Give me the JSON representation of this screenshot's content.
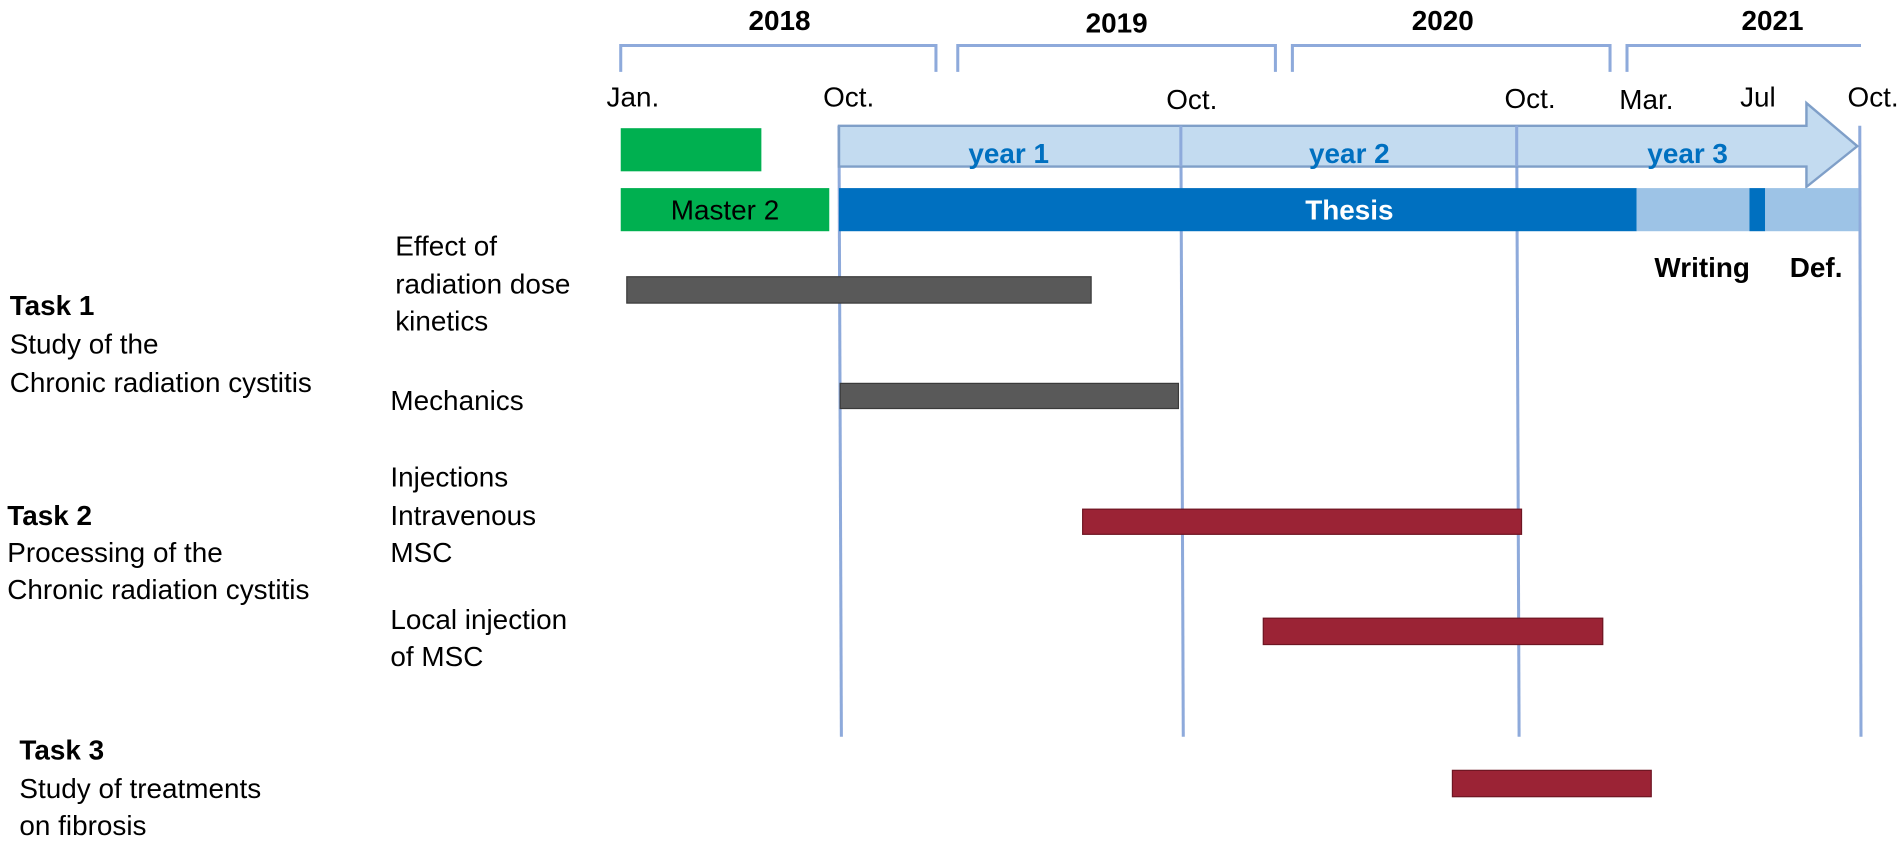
{
  "years": [
    "2018",
    "2019",
    "2020",
    "2021"
  ],
  "months": [
    "Jan.",
    "Oct.",
    "Oct.",
    "Oct.",
    "Mar.",
    "Jul",
    "Oct."
  ],
  "phases": [
    "year 1",
    "year 2",
    "year 3"
  ],
  "periods": {
    "master": "Master 2",
    "thesis": "Thesis",
    "writing": "Writing",
    "defense": "Def."
  },
  "tasks": [
    {
      "title": "Task 1",
      "description": [
        "Study of the",
        "Chronic radiation cystitis"
      ]
    },
    {
      "title": "Task 2",
      "description": [
        "Processing of the",
        "Chronic radiation cystitis"
      ]
    },
    {
      "title": "Task 3",
      "description": [
        "Study of treatments",
        "on fibrosis"
      ]
    }
  ],
  "activities": [
    [
      "Effect of",
      "radiation dose",
      "kinetics"
    ],
    [
      "Mechanics"
    ],
    [
      "Injections",
      "Intravenous",
      "MSC"
    ],
    [
      "Local injection",
      "of MSC"
    ]
  ]
}
